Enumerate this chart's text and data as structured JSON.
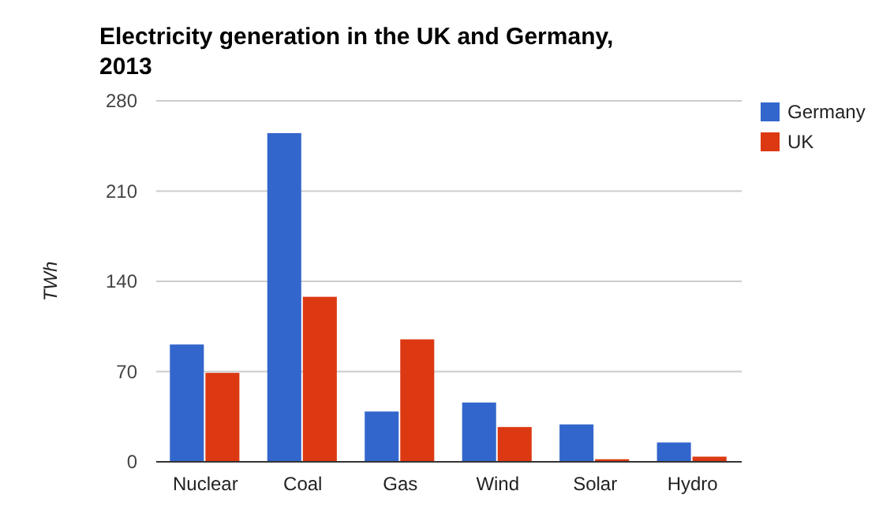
{
  "chart_data": {
    "type": "bar",
    "title": "Electricity generation in the UK and Germany, 2013",
    "ylabel": "TWh",
    "categories": [
      "Nuclear",
      "Coal",
      "Gas",
      "Wind",
      "Solar",
      "Hydro"
    ],
    "series": [
      {
        "name": "Germany",
        "color": "#3366cc",
        "values": [
          91,
          255,
          39,
          46,
          29,
          15
        ]
      },
      {
        "name": "UK",
        "color": "#dc3912",
        "values": [
          69,
          128,
          95,
          27,
          2,
          4
        ]
      }
    ],
    "ylim": [
      0,
      280
    ],
    "yticks": [
      0,
      70,
      140,
      210,
      280
    ],
    "grid": "y",
    "legend": "top right"
  }
}
